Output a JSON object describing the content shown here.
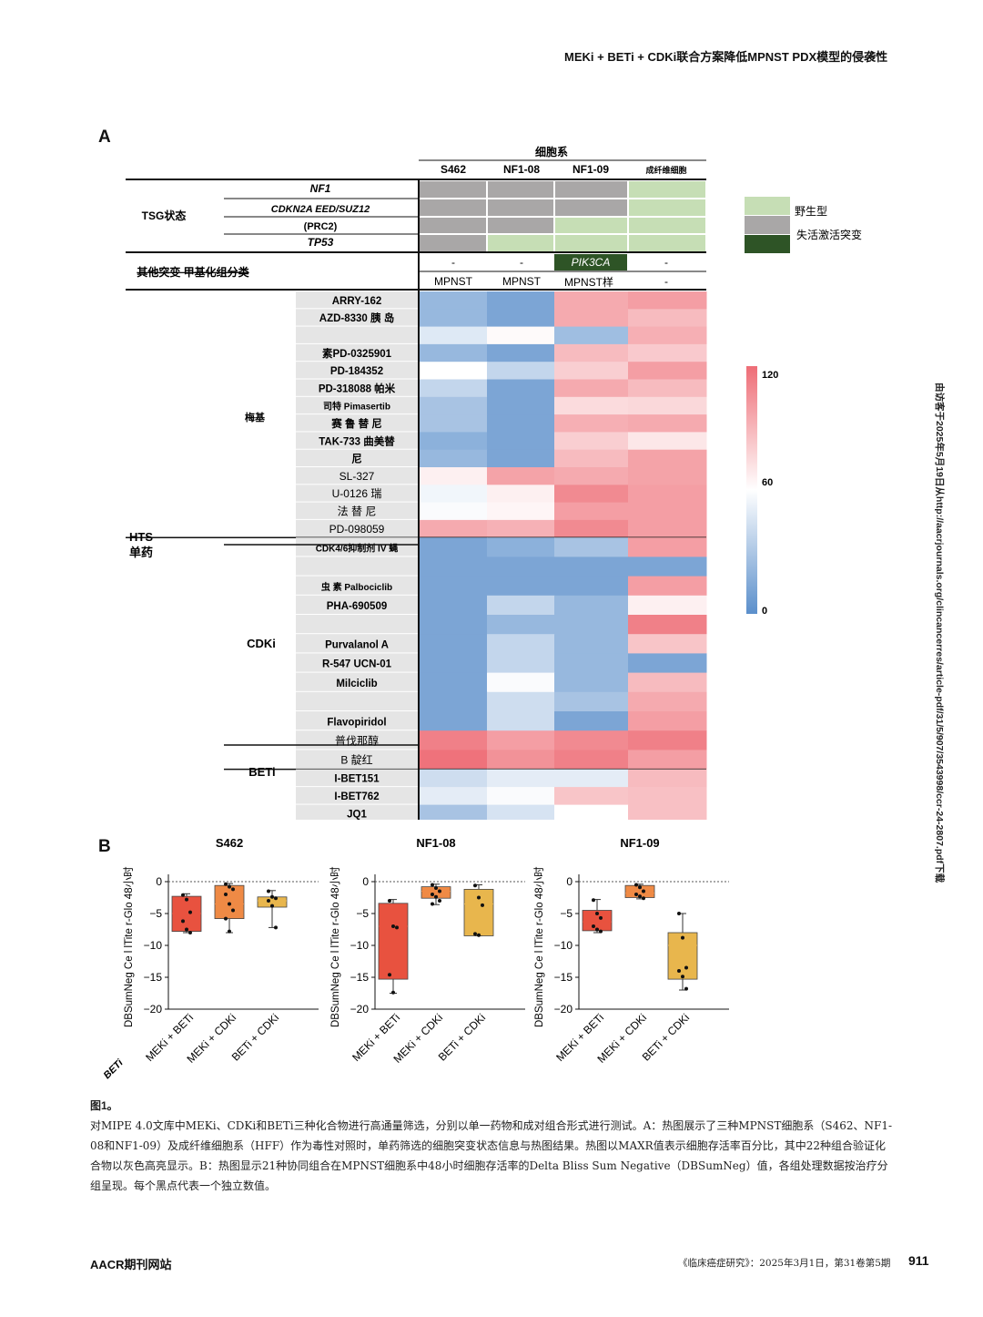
{
  "running_header": "MEKi + BETi + CDKi联合方案降低MPNST PDX模型的侵袭性",
  "side_note": "由访客于2025年5月19日从http://aacrjournals.org/clincancerres/article-pdf/31/5/907/3543998/ccr-24-2807.pdf下载",
  "panel_a": {
    "letter": "A",
    "cell_lines_title": "细胞系",
    "columns": [
      "S462",
      "NF1-08",
      "NF1-09",
      "成纤维细胞"
    ],
    "tsg_label": "TSG状态",
    "tsg_rows": [
      "NF1",
      "CDKN2A EED/SUZ12",
      "(PRC2)",
      "TP53"
    ],
    "tsg_states": [
      [
        "loss",
        "loss",
        "loss",
        "wt"
      ],
      [
        "loss",
        "loss",
        "loss",
        "wt"
      ],
      [
        "loss",
        "loss",
        "wt",
        "wt"
      ],
      [
        "loss",
        "wt",
        "wt",
        "wt"
      ]
    ],
    "other_label": "其他突变 甲基化组分类",
    "other_mutation": [
      "-",
      "-",
      "PIK3CA",
      "-"
    ],
    "methylation": [
      "MPNST",
      "MPNST",
      "MPNST样",
      "-"
    ],
    "legend_wt": "野生型",
    "legend_loss": "失活激活突变",
    "hts_label": "HTS",
    "hts_sub": "单药",
    "scale_max": "120",
    "scale_mid": "60",
    "scale_min": "0",
    "groups": [
      {
        "name": "梅基",
        "rows": [
          {
            "label": "ARRY-162",
            "v": [
              22,
              12,
              95,
              100
            ]
          },
          {
            "label": "AZD-8330 胰 岛",
            "v": [
              22,
              12,
              95,
              88
            ]
          },
          {
            "label": "",
            "v": [
              48,
              62,
              25,
              93
            ]
          },
          {
            "label": "素PD-0325901",
            "v": [
              22,
              12,
              88,
              82
            ]
          },
          {
            "label": "PD-184352",
            "v": [
              60,
              38,
              80,
              100
            ]
          },
          {
            "label": "PD-318088 帕米",
            "v": [
              38,
              12,
              95,
              88
            ]
          },
          {
            "label": "司特 Pimasertib",
            "v": [
              28,
              12,
              75,
              76
            ]
          },
          {
            "label": "赛 鲁 替 尼",
            "v": [
              28,
              12,
              93,
              95
            ]
          },
          {
            "label": "TAK-733 曲美替",
            "v": [
              18,
              12,
              80,
              70
            ]
          },
          {
            "label": "尼",
            "v": [
              22,
              12,
              88,
              98
            ]
          },
          {
            "label": "SL-327",
            "v": [
              66,
              98,
              95,
              98
            ]
          },
          {
            "label": "U-0126   瑞",
            "v": [
              55,
              66,
              108,
              100
            ]
          },
          {
            "label": "法 替 尼",
            "v": [
              58,
              64,
              100,
              100
            ]
          },
          {
            "label": "PD-098059",
            "v": [
              95,
              92,
              108,
              100
            ]
          }
        ]
      },
      {
        "name": "CDKi",
        "rows": [
          {
            "label": "CDK4/6抑制剂 IV 蝇",
            "v": [
              12,
              18,
              28,
              100
            ]
          },
          {
            "label": "",
            "v": [
              12,
              12,
              12,
              12
            ]
          },
          {
            "label": "虫 素  Palbociclib",
            "v": [
              12,
              12,
              12,
              100
            ]
          },
          {
            "label": "PHA-690509",
            "v": [
              12,
              38,
              22,
              66
            ]
          },
          {
            "label": "",
            "v": [
              12,
              22,
              22,
              112
            ]
          },
          {
            "label": "Purvalanol A",
            "v": [
              12,
              38,
              22,
              84
            ]
          },
          {
            "label": "R-547 UCN-01",
            "v": [
              12,
              38,
              22,
              12
            ]
          },
          {
            "label": "Milciclib",
            "v": [
              12,
              58,
              22,
              88
            ]
          },
          {
            "label": "",
            "v": [
              12,
              42,
              28,
              95
            ]
          },
          {
            "label": "Flavopiridol",
            "v": [
              12,
              42,
              12,
              100
            ]
          },
          {
            "label": "普伐那醇",
            "v": [
              112,
              100,
              108,
              112
            ]
          },
          {
            "label": "B 靛红",
            "v": [
              118,
              105,
              112,
              100
            ]
          }
        ]
      },
      {
        "name": "BETi",
        "rows": [
          {
            "label": "I-BET151",
            "v": [
              42,
              50,
              50,
              88
            ]
          },
          {
            "label": "I-BET762",
            "v": [
              50,
              58,
              84,
              86
            ]
          },
          {
            "label": "JQ1",
            "v": [
              28,
              45,
              60,
              86
            ]
          }
        ]
      }
    ]
  },
  "panel_b": {
    "letter": "B",
    "ylabel": "DBSumNeg Ce l lTite r-Glo 48小时",
    "corner_mark": "BETi",
    "chart_data": [
      {
        "type": "box",
        "title": "S462",
        "ylim": [
          -20,
          0
        ],
        "yticks": [
          0,
          -5,
          -10,
          -15,
          -20
        ],
        "categories": [
          "MEKi + BETi",
          "MEKi + CDKi",
          "BETi + CDKi"
        ],
        "boxes": [
          {
            "q1": -7.8,
            "median": -5,
            "q3": -2.3,
            "min": -8,
            "max": -1.9,
            "points": [
              -2.1,
              -2.8,
              -4.8,
              -6.2,
              -7.5,
              -8
            ]
          },
          {
            "q1": -5.8,
            "median": -3.5,
            "q3": -0.6,
            "min": -8,
            "max": -0.3,
            "points": [
              -0.4,
              -0.8,
              -1.2,
              -2,
              -3.5,
              -4.5,
              -5.8,
              -7.8
            ]
          },
          {
            "q1": -4,
            "median": -3,
            "q3": -2.4,
            "min": -7.2,
            "max": -1.4,
            "points": [
              -1.5,
              -2.4,
              -2.6,
              -3,
              -3.8,
              -7.2
            ]
          }
        ],
        "colors": [
          "#e8523f",
          "#ef8a45",
          "#e8b64d"
        ]
      },
      {
        "type": "box",
        "title": "NF1-08",
        "ylim": [
          -20,
          0
        ],
        "yticks": [
          0,
          -5,
          -10,
          -15,
          -20
        ],
        "categories": [
          "MEKi + BETi",
          "MEKi + CDKi",
          "BETi + CDKi"
        ],
        "boxes": [
          {
            "q1": -15.3,
            "median": -7,
            "q3": -3.4,
            "min": -17.5,
            "max": -2.8,
            "points": [
              -3,
              -7,
              -7.2,
              -14.6,
              -17.4
            ]
          },
          {
            "q1": -2.6,
            "median": -1.5,
            "q3": -0.8,
            "min": -3.6,
            "max": -0.4,
            "points": [
              -0.5,
              -1,
              -1.5,
              -2,
              -2.4,
              -3,
              -3.5
            ]
          },
          {
            "q1": -8.5,
            "median": -3.5,
            "q3": -1.2,
            "min": -8.5,
            "max": -0.5,
            "points": [
              -0.6,
              -2.5,
              -3.7,
              -8.2,
              -8.4
            ]
          }
        ],
        "colors": [
          "#e8523f",
          "#ef8a45",
          "#e8b64d"
        ]
      },
      {
        "type": "box",
        "title": "NF1-09",
        "ylim": [
          -20,
          0
        ],
        "yticks": [
          0,
          -5,
          -10,
          -15,
          -20
        ],
        "categories": [
          "MEKi + BETi",
          "MEKi + CDKi",
          "BETi + CDKi"
        ],
        "boxes": [
          {
            "q1": -7.7,
            "median": -6.3,
            "q3": -4.5,
            "min": -8,
            "max": -2.8,
            "points": [
              -2.9,
              -5,
              -5.7,
              -7,
              -7.5,
              -7.8
            ]
          },
          {
            "q1": -2.5,
            "median": -1.8,
            "q3": -0.6,
            "min": -2.7,
            "max": -0.4,
            "points": [
              -0.5,
              -0.9,
              -1.5,
              -2,
              -2.3,
              -2.6
            ]
          },
          {
            "q1": -15.3,
            "median": -10,
            "q3": -8,
            "min": -17,
            "max": -5,
            "points": [
              -5,
              -8.8,
              -13.5,
              -14,
              -14.9,
              -16.8
            ]
          }
        ],
        "colors": [
          "#e8523f",
          "#ef8a45",
          "#e8b64d"
        ]
      }
    ]
  },
  "caption": {
    "title": "图1。",
    "text": "对MIPE 4.0文库中MEKi、CDKi和BETi三种化合物进行高通量筛选，分别以单一药物和成对组合形式进行测试。A：热图展示了三种MPNST细胞系（S462、NF1-08和NF1-09）及成纤维细胞系（HFF）作为毒性对照时，单药筛选的细胞突变状态信息与热图结果。热图以MAXR值表示细胞存活率百分比，其中22种组合验证化合物以灰色高亮显示。B：热图显示21种协同组合在MPNST细胞系中48小时细胞存活率的Delta Bliss Sum Negative（DBSumNeg）值，各组处理数据按治疗分组呈现。每个黑点代表一个独立数值。"
  },
  "footer": {
    "left": "AACR期刊网站",
    "citation": "《临床癌症研究》：2025年3月1日，第31卷第5期",
    "page": "911"
  },
  "colors": {
    "loss": "#a9a7a7",
    "wt": "#c6deb5",
    "mut": "#2e5426",
    "blue": "#5b8fcb",
    "white": "#ffffff",
    "red": "#ee6d76"
  }
}
